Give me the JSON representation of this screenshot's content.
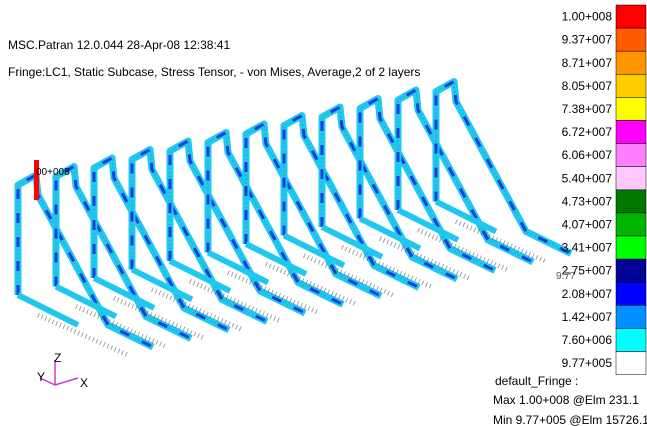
{
  "header": {
    "title": "MSC.Patran 12.0.044 28-Apr-08 12:38:41",
    "subtitle": "Fringe:LC1, Static Subcase, Stress Tensor, - von Mises, Average,2 of 2 layers"
  },
  "legend": {
    "entries": [
      {
        "label": "1.00+008",
        "color": "#ff0000"
      },
      {
        "label": "9.37+007",
        "color": "#ff5a00"
      },
      {
        "label": "8.71+007",
        "color": "#ff9600"
      },
      {
        "label": "8.05+007",
        "color": "#ffcc00"
      },
      {
        "label": "7.38+007",
        "color": "#ffff00"
      },
      {
        "label": "6.72+007",
        "color": "#ff00ff"
      },
      {
        "label": "6.06+007",
        "color": "#ff80ff"
      },
      {
        "label": "5.40+007",
        "color": "#ffc8ff"
      },
      {
        "label": "4.73+007",
        "color": "#007800"
      },
      {
        "label": "4.07+007",
        "color": "#00b400"
      },
      {
        "label": "3.41+007",
        "color": "#00ff00"
      },
      {
        "label": "2.75+007",
        "color": "#000096"
      },
      {
        "label": "2.08+007",
        "color": "#0000ff"
      },
      {
        "label": "1.42+007",
        "color": "#0090ff"
      },
      {
        "label": "7.60+006",
        "color": "#00ffff"
      },
      {
        "label": "9.77+005",
        "color": "#ffffff"
      }
    ]
  },
  "summary": {
    "title": "default_Fringe :",
    "max": "Max 1.00+008 @Elm 231.1",
    "min": "Min 9.77+005 @Elm 15726.1"
  },
  "annotations": {
    "max_marker": "00+008",
    "min_marker": "9.77"
  },
  "triad": {
    "z": "Z",
    "y": "Y",
    "x": "X"
  }
}
